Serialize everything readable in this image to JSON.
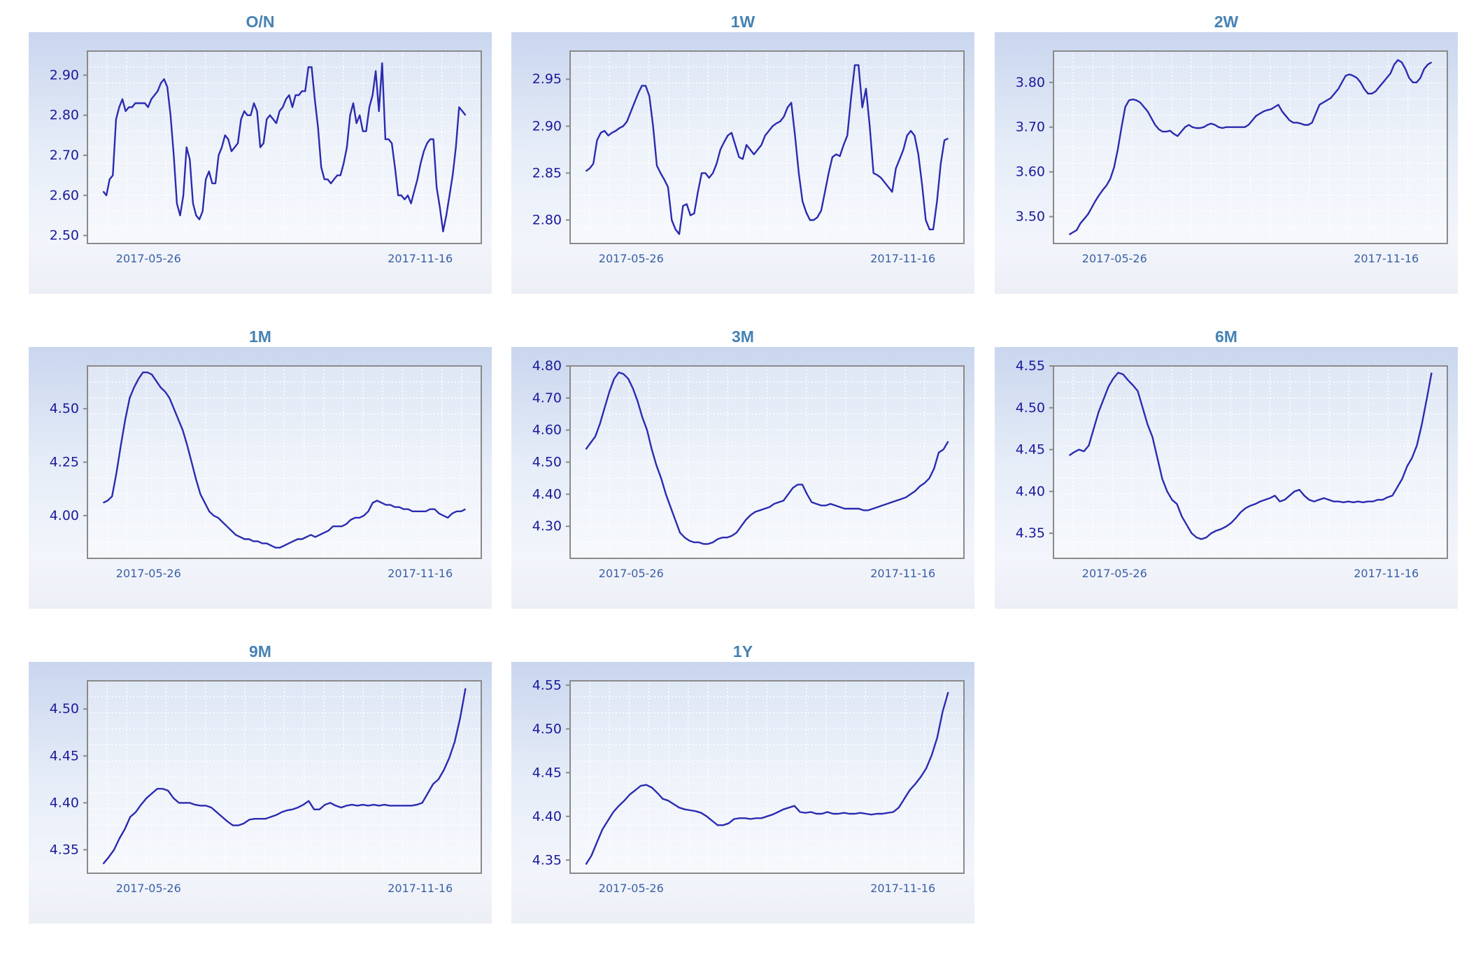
{
  "chart_data": [
    {
      "type": "line",
      "title": "O/N",
      "ylim": [
        2.48,
        2.96
      ],
      "yticks": [
        2.5,
        2.6,
        2.7,
        2.8,
        2.9
      ],
      "xticks": [
        "2017-05-26",
        "2017-11-16"
      ],
      "grid": true,
      "color": "#2b2bb0",
      "series": [
        {
          "values": [
            2.61,
            2.6,
            2.64,
            2.65,
            2.79,
            2.82,
            2.84,
            2.81,
            2.82,
            2.82,
            2.83,
            2.83,
            2.83,
            2.83,
            2.82,
            2.84,
            2.85,
            2.86,
            2.88,
            2.89,
            2.87,
            2.8,
            2.7,
            2.58,
            2.55,
            2.6,
            2.72,
            2.69,
            2.58,
            2.55,
            2.54,
            2.56,
            2.64,
            2.66,
            2.63,
            2.63,
            2.7,
            2.72,
            2.75,
            2.74,
            2.71,
            2.72,
            2.73,
            2.79,
            2.81,
            2.8,
            2.8,
            2.83,
            2.81,
            2.72,
            2.73,
            2.79,
            2.8,
            2.79,
            2.78,
            2.81,
            2.82,
            2.84,
            2.85,
            2.82,
            2.85,
            2.85,
            2.86,
            2.86,
            2.92,
            2.92,
            2.84,
            2.77,
            2.67,
            2.64,
            2.64,
            2.63,
            2.64,
            2.65,
            2.65,
            2.68,
            2.72,
            2.8,
            2.83,
            2.78,
            2.8,
            2.76,
            2.76,
            2.82,
            2.85,
            2.91,
            2.81,
            2.93,
            2.74,
            2.74,
            2.73,
            2.67,
            2.6,
            2.6,
            2.59,
            2.6,
            2.58,
            2.61,
            2.64,
            2.68,
            2.71,
            2.73,
            2.74,
            2.74,
            2.62,
            2.57,
            2.51,
            2.55,
            2.6,
            2.65,
            2.72,
            2.82,
            2.81,
            2.8
          ]
        }
      ]
    },
    {
      "type": "line",
      "title": "1W",
      "ylim": [
        2.775,
        2.98
      ],
      "yticks": [
        2.8,
        2.85,
        2.9,
        2.95
      ],
      "xticks": [
        "2017-05-26",
        "2017-11-16"
      ],
      "grid": true,
      "color": "#2b2bb0",
      "series": [
        {
          "values": [
            2.852,
            2.855,
            2.86,
            2.885,
            2.893,
            2.895,
            2.89,
            2.893,
            2.895,
            2.898,
            2.9,
            2.905,
            2.915,
            2.925,
            2.935,
            2.943,
            2.943,
            2.932,
            2.9,
            2.858,
            2.85,
            2.843,
            2.835,
            2.8,
            2.79,
            2.785,
            2.815,
            2.817,
            2.805,
            2.807,
            2.83,
            2.85,
            2.85,
            2.845,
            2.85,
            2.86,
            2.875,
            2.883,
            2.89,
            2.893,
            2.88,
            2.867,
            2.865,
            2.88,
            2.875,
            2.87,
            2.875,
            2.88,
            2.89,
            2.895,
            2.9,
            2.903,
            2.905,
            2.91,
            2.92,
            2.925,
            2.89,
            2.85,
            2.82,
            2.808,
            2.8,
            2.8,
            2.803,
            2.81,
            2.83,
            2.85,
            2.867,
            2.87,
            2.868,
            2.88,
            2.89,
            2.93,
            2.965,
            2.965,
            2.92,
            2.94,
            2.9,
            2.85,
            2.848,
            2.845,
            2.84,
            2.835,
            2.83,
            2.855,
            2.865,
            2.875,
            2.89,
            2.895,
            2.89,
            2.87,
            2.838,
            2.8,
            2.79,
            2.79,
            2.82,
            2.86,
            2.885,
            2.887
          ]
        }
      ]
    },
    {
      "type": "line",
      "title": "2W",
      "ylim": [
        3.44,
        3.87
      ],
      "yticks": [
        3.5,
        3.6,
        3.7,
        3.8
      ],
      "xticks": [
        "2017-05-26",
        "2017-11-16"
      ],
      "grid": true,
      "color": "#2b2bb0",
      "series": [
        {
          "values": [
            3.46,
            3.465,
            3.47,
            3.485,
            3.495,
            3.505,
            3.52,
            3.535,
            3.548,
            3.56,
            3.57,
            3.585,
            3.61,
            3.65,
            3.7,
            3.745,
            3.76,
            3.762,
            3.76,
            3.755,
            3.745,
            3.735,
            3.72,
            3.705,
            3.695,
            3.69,
            3.69,
            3.692,
            3.685,
            3.68,
            3.69,
            3.7,
            3.705,
            3.7,
            3.698,
            3.698,
            3.7,
            3.705,
            3.708,
            3.705,
            3.7,
            3.698,
            3.7,
            3.7,
            3.7,
            3.7,
            3.7,
            3.7,
            3.705,
            3.715,
            3.725,
            3.73,
            3.735,
            3.738,
            3.74,
            3.745,
            3.75,
            3.735,
            3.725,
            3.715,
            3.71,
            3.71,
            3.708,
            3.705,
            3.705,
            3.71,
            3.73,
            3.75,
            3.755,
            3.76,
            3.765,
            3.775,
            3.785,
            3.8,
            3.815,
            3.818,
            3.815,
            3.81,
            3.8,
            3.785,
            3.775,
            3.775,
            3.78,
            3.79,
            3.8,
            3.81,
            3.82,
            3.84,
            3.85,
            3.845,
            3.83,
            3.81,
            3.8,
            3.8,
            3.81,
            3.83,
            3.84,
            3.845
          ]
        }
      ]
    },
    {
      "type": "line",
      "title": "1M",
      "ylim": [
        3.8,
        4.7
      ],
      "yticks": [
        4.0,
        4.25,
        4.5
      ],
      "xticks": [
        "2017-05-26",
        "2017-11-16"
      ],
      "grid": true,
      "color": "#2b2bb0",
      "series": [
        {
          "values": [
            4.06,
            4.07,
            4.09,
            4.2,
            4.33,
            4.45,
            4.55,
            4.6,
            4.64,
            4.67,
            4.67,
            4.66,
            4.63,
            4.6,
            4.58,
            4.55,
            4.5,
            4.45,
            4.4,
            4.33,
            4.25,
            4.17,
            4.1,
            4.06,
            4.02,
            4.0,
            3.99,
            3.97,
            3.95,
            3.93,
            3.91,
            3.9,
            3.89,
            3.89,
            3.88,
            3.88,
            3.87,
            3.87,
            3.86,
            3.85,
            3.85,
            3.86,
            3.87,
            3.88,
            3.89,
            3.89,
            3.9,
            3.91,
            3.9,
            3.91,
            3.92,
            3.93,
            3.95,
            3.95,
            3.95,
            3.96,
            3.98,
            3.99,
            3.99,
            4.0,
            4.02,
            4.06,
            4.07,
            4.06,
            4.05,
            4.05,
            4.04,
            4.04,
            4.03,
            4.03,
            4.02,
            4.02,
            4.02,
            4.02,
            4.03,
            4.03,
            4.01,
            4.0,
            3.99,
            4.01,
            4.02,
            4.02,
            4.03
          ]
        }
      ]
    },
    {
      "type": "line",
      "title": "3M",
      "ylim": [
        4.2,
        4.8
      ],
      "yticks": [
        4.3,
        4.4,
        4.5,
        4.6,
        4.7,
        4.8
      ],
      "xticks": [
        "2017-05-26",
        "2017-11-16"
      ],
      "grid": true,
      "color": "#2b2bb0",
      "series": [
        {
          "values": [
            4.54,
            4.56,
            4.58,
            4.62,
            4.67,
            4.72,
            4.76,
            4.78,
            4.775,
            4.76,
            4.73,
            4.69,
            4.64,
            4.6,
            4.54,
            4.49,
            4.45,
            4.4,
            4.36,
            4.32,
            4.28,
            4.265,
            4.255,
            4.25,
            4.25,
            4.245,
            4.245,
            4.25,
            4.26,
            4.265,
            4.265,
            4.27,
            4.28,
            4.3,
            4.32,
            4.335,
            4.345,
            4.35,
            4.355,
            4.36,
            4.37,
            4.375,
            4.38,
            4.4,
            4.42,
            4.43,
            4.43,
            4.4,
            4.375,
            4.37,
            4.365,
            4.365,
            4.37,
            4.365,
            4.36,
            4.355,
            4.355,
            4.355,
            4.355,
            4.35,
            4.35,
            4.355,
            4.36,
            4.365,
            4.37,
            4.375,
            4.38,
            4.385,
            4.39,
            4.4,
            4.41,
            4.425,
            4.435,
            4.45,
            4.48,
            4.53,
            4.54,
            4.565
          ]
        }
      ]
    },
    {
      "type": "line",
      "title": "6M",
      "ylim": [
        4.32,
        4.55
      ],
      "yticks": [
        4.35,
        4.4,
        4.45,
        4.5,
        4.55
      ],
      "xticks": [
        "2017-05-26",
        "2017-11-16"
      ],
      "grid": true,
      "color": "#2b2bb0",
      "series": [
        {
          "values": [
            4.443,
            4.447,
            4.45,
            4.448,
            4.455,
            4.475,
            4.495,
            4.51,
            4.525,
            4.535,
            4.542,
            4.54,
            4.533,
            4.527,
            4.52,
            4.5,
            4.48,
            4.465,
            4.44,
            4.415,
            4.4,
            4.39,
            4.385,
            4.37,
            4.36,
            4.35,
            4.345,
            4.343,
            4.345,
            4.35,
            4.353,
            4.355,
            4.358,
            4.362,
            4.368,
            4.375,
            4.38,
            4.383,
            4.385,
            4.388,
            4.39,
            4.392,
            4.395,
            4.388,
            4.39,
            4.395,
            4.4,
            4.402,
            4.395,
            4.39,
            4.388,
            4.39,
            4.392,
            4.39,
            4.388,
            4.388,
            4.387,
            4.388,
            4.387,
            4.388,
            4.387,
            4.388,
            4.388,
            4.39,
            4.39,
            4.393,
            4.395,
            4.405,
            4.415,
            4.43,
            4.44,
            4.455,
            4.48,
            4.51,
            4.542
          ]
        }
      ]
    },
    {
      "type": "line",
      "title": "9M",
      "ylim": [
        4.325,
        4.53
      ],
      "yticks": [
        4.35,
        4.4,
        4.45,
        4.5
      ],
      "xticks": [
        "2017-05-26",
        "2017-11-16"
      ],
      "grid": true,
      "color": "#2b2bb0",
      "series": [
        {
          "values": [
            4.335,
            4.342,
            4.35,
            4.362,
            4.372,
            4.385,
            4.39,
            4.398,
            4.405,
            4.41,
            4.415,
            4.415,
            4.413,
            4.405,
            4.4,
            4.4,
            4.4,
            4.398,
            4.397,
            4.397,
            4.395,
            4.39,
            4.385,
            4.38,
            4.376,
            4.376,
            4.378,
            4.382,
            4.383,
            4.383,
            4.383,
            4.385,
            4.387,
            4.39,
            4.392,
            4.393,
            4.395,
            4.398,
            4.402,
            4.393,
            4.393,
            4.398,
            4.4,
            4.397,
            4.395,
            4.397,
            4.398,
            4.397,
            4.398,
            4.397,
            4.398,
            4.397,
            4.398,
            4.397,
            4.397,
            4.397,
            4.397,
            4.397,
            4.398,
            4.4,
            4.41,
            4.42,
            4.425,
            4.435,
            4.448,
            4.465,
            4.49,
            4.522
          ]
        }
      ]
    },
    {
      "type": "line",
      "title": "1Y",
      "ylim": [
        4.335,
        4.555
      ],
      "yticks": [
        4.35,
        4.4,
        4.45,
        4.5,
        4.55
      ],
      "xticks": [
        "2017-05-26",
        "2017-11-16"
      ],
      "grid": true,
      "color": "#2b2bb0",
      "series": [
        {
          "values": [
            4.345,
            4.355,
            4.37,
            4.385,
            4.395,
            4.405,
            4.412,
            4.418,
            4.425,
            4.43,
            4.435,
            4.436,
            4.433,
            4.427,
            4.42,
            4.418,
            4.414,
            4.41,
            4.408,
            4.407,
            4.406,
            4.404,
            4.4,
            4.395,
            4.39,
            4.39,
            4.392,
            4.397,
            4.398,
            4.398,
            4.397,
            4.398,
            4.398,
            4.4,
            4.402,
            4.405,
            4.408,
            4.41,
            4.412,
            4.405,
            4.404,
            4.405,
            4.403,
            4.403,
            4.405,
            4.403,
            4.403,
            4.404,
            4.403,
            4.403,
            4.404,
            4.403,
            4.402,
            4.403,
            4.403,
            4.404,
            4.405,
            4.41,
            4.42,
            4.43,
            4.437,
            4.445,
            4.455,
            4.47,
            4.49,
            4.52,
            4.542
          ]
        }
      ]
    }
  ]
}
